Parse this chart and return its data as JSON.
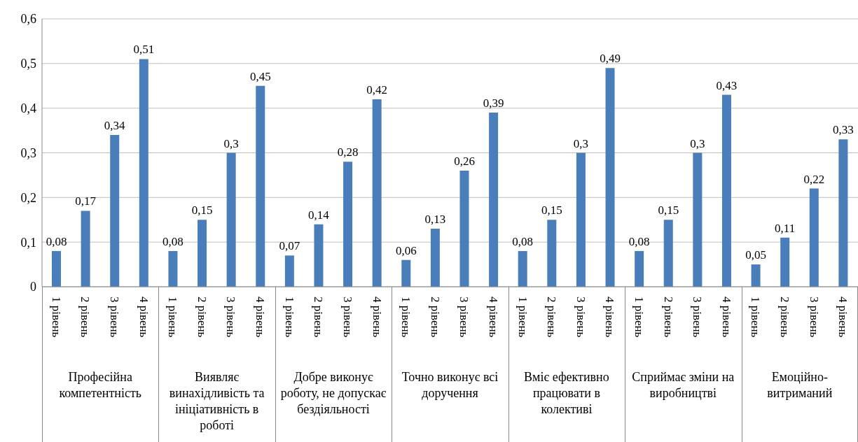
{
  "chart_data": {
    "type": "bar",
    "categories": [
      "1 рівень",
      "2 рівень",
      "3 рівень",
      "4 рівень",
      "1 рівень",
      "2 рівень",
      "3 рівень",
      "4 рівень",
      "1 рівень",
      "2 рівень",
      "3 рівень",
      "4 рівень",
      "1 рівень",
      "2 рівень",
      "3 рівень",
      "4 рівень",
      "1 рівень",
      "2 рівень",
      "3 рівень",
      "4 рівень",
      "1 рівень",
      "2 рівень",
      "3 рівень",
      "4 рівень",
      "1 рівень",
      "2 рівень",
      "3 рівень",
      "4 рівень"
    ],
    "values": [
      0.08,
      0.17,
      0.34,
      0.51,
      0.08,
      0.15,
      0.3,
      0.45,
      0.07,
      0.14,
      0.28,
      0.42,
      0.06,
      0.13,
      0.26,
      0.39,
      0.08,
      0.15,
      0.3,
      0.49,
      0.08,
      0.15,
      0.3,
      0.43,
      0.05,
      0.11,
      0.22,
      0.33
    ],
    "value_labels": [
      "0,08",
      "0,17",
      "0,34",
      "0,51",
      "0,08",
      "0,15",
      "0,3",
      "0,45",
      "0,07",
      "0,14",
      "0,28",
      "0,42",
      "0,06",
      "0,13",
      "0,26",
      "0,39",
      "0,08",
      "0,15",
      "0,3",
      "0,49",
      "0,08",
      "0,15",
      "0,3",
      "0,43",
      "0,05",
      "0,11",
      "0,22",
      "0,33"
    ],
    "annotations": [
      "Професійна компетентність",
      "Виявляє винахідливість та ініціативність в роботі",
      "Добре виконує роботу, не допускає бездіяльності",
      "Точно виконує всі доручення",
      "Вміє ефективно працювати в колективі",
      "Сприймає зміни на виробництві",
      "Емоційно-витриманий"
    ],
    "color": "#4a7ebb",
    "ylim": [
      0,
      0.6
    ],
    "yticks": [
      0,
      {
        "value": 0.1,
        "label": "0,1"
      },
      {
        "value": 0.2,
        "label": "0,2"
      },
      {
        "value": 0.3,
        "label": "0,3"
      },
      {
        "value": 0.4,
        "label": "0,4"
      },
      {
        "value": 0.5,
        "label": "0,5"
      },
      {
        "value": 0.6,
        "label": "0,6"
      }
    ],
    "grid": "y"
  }
}
